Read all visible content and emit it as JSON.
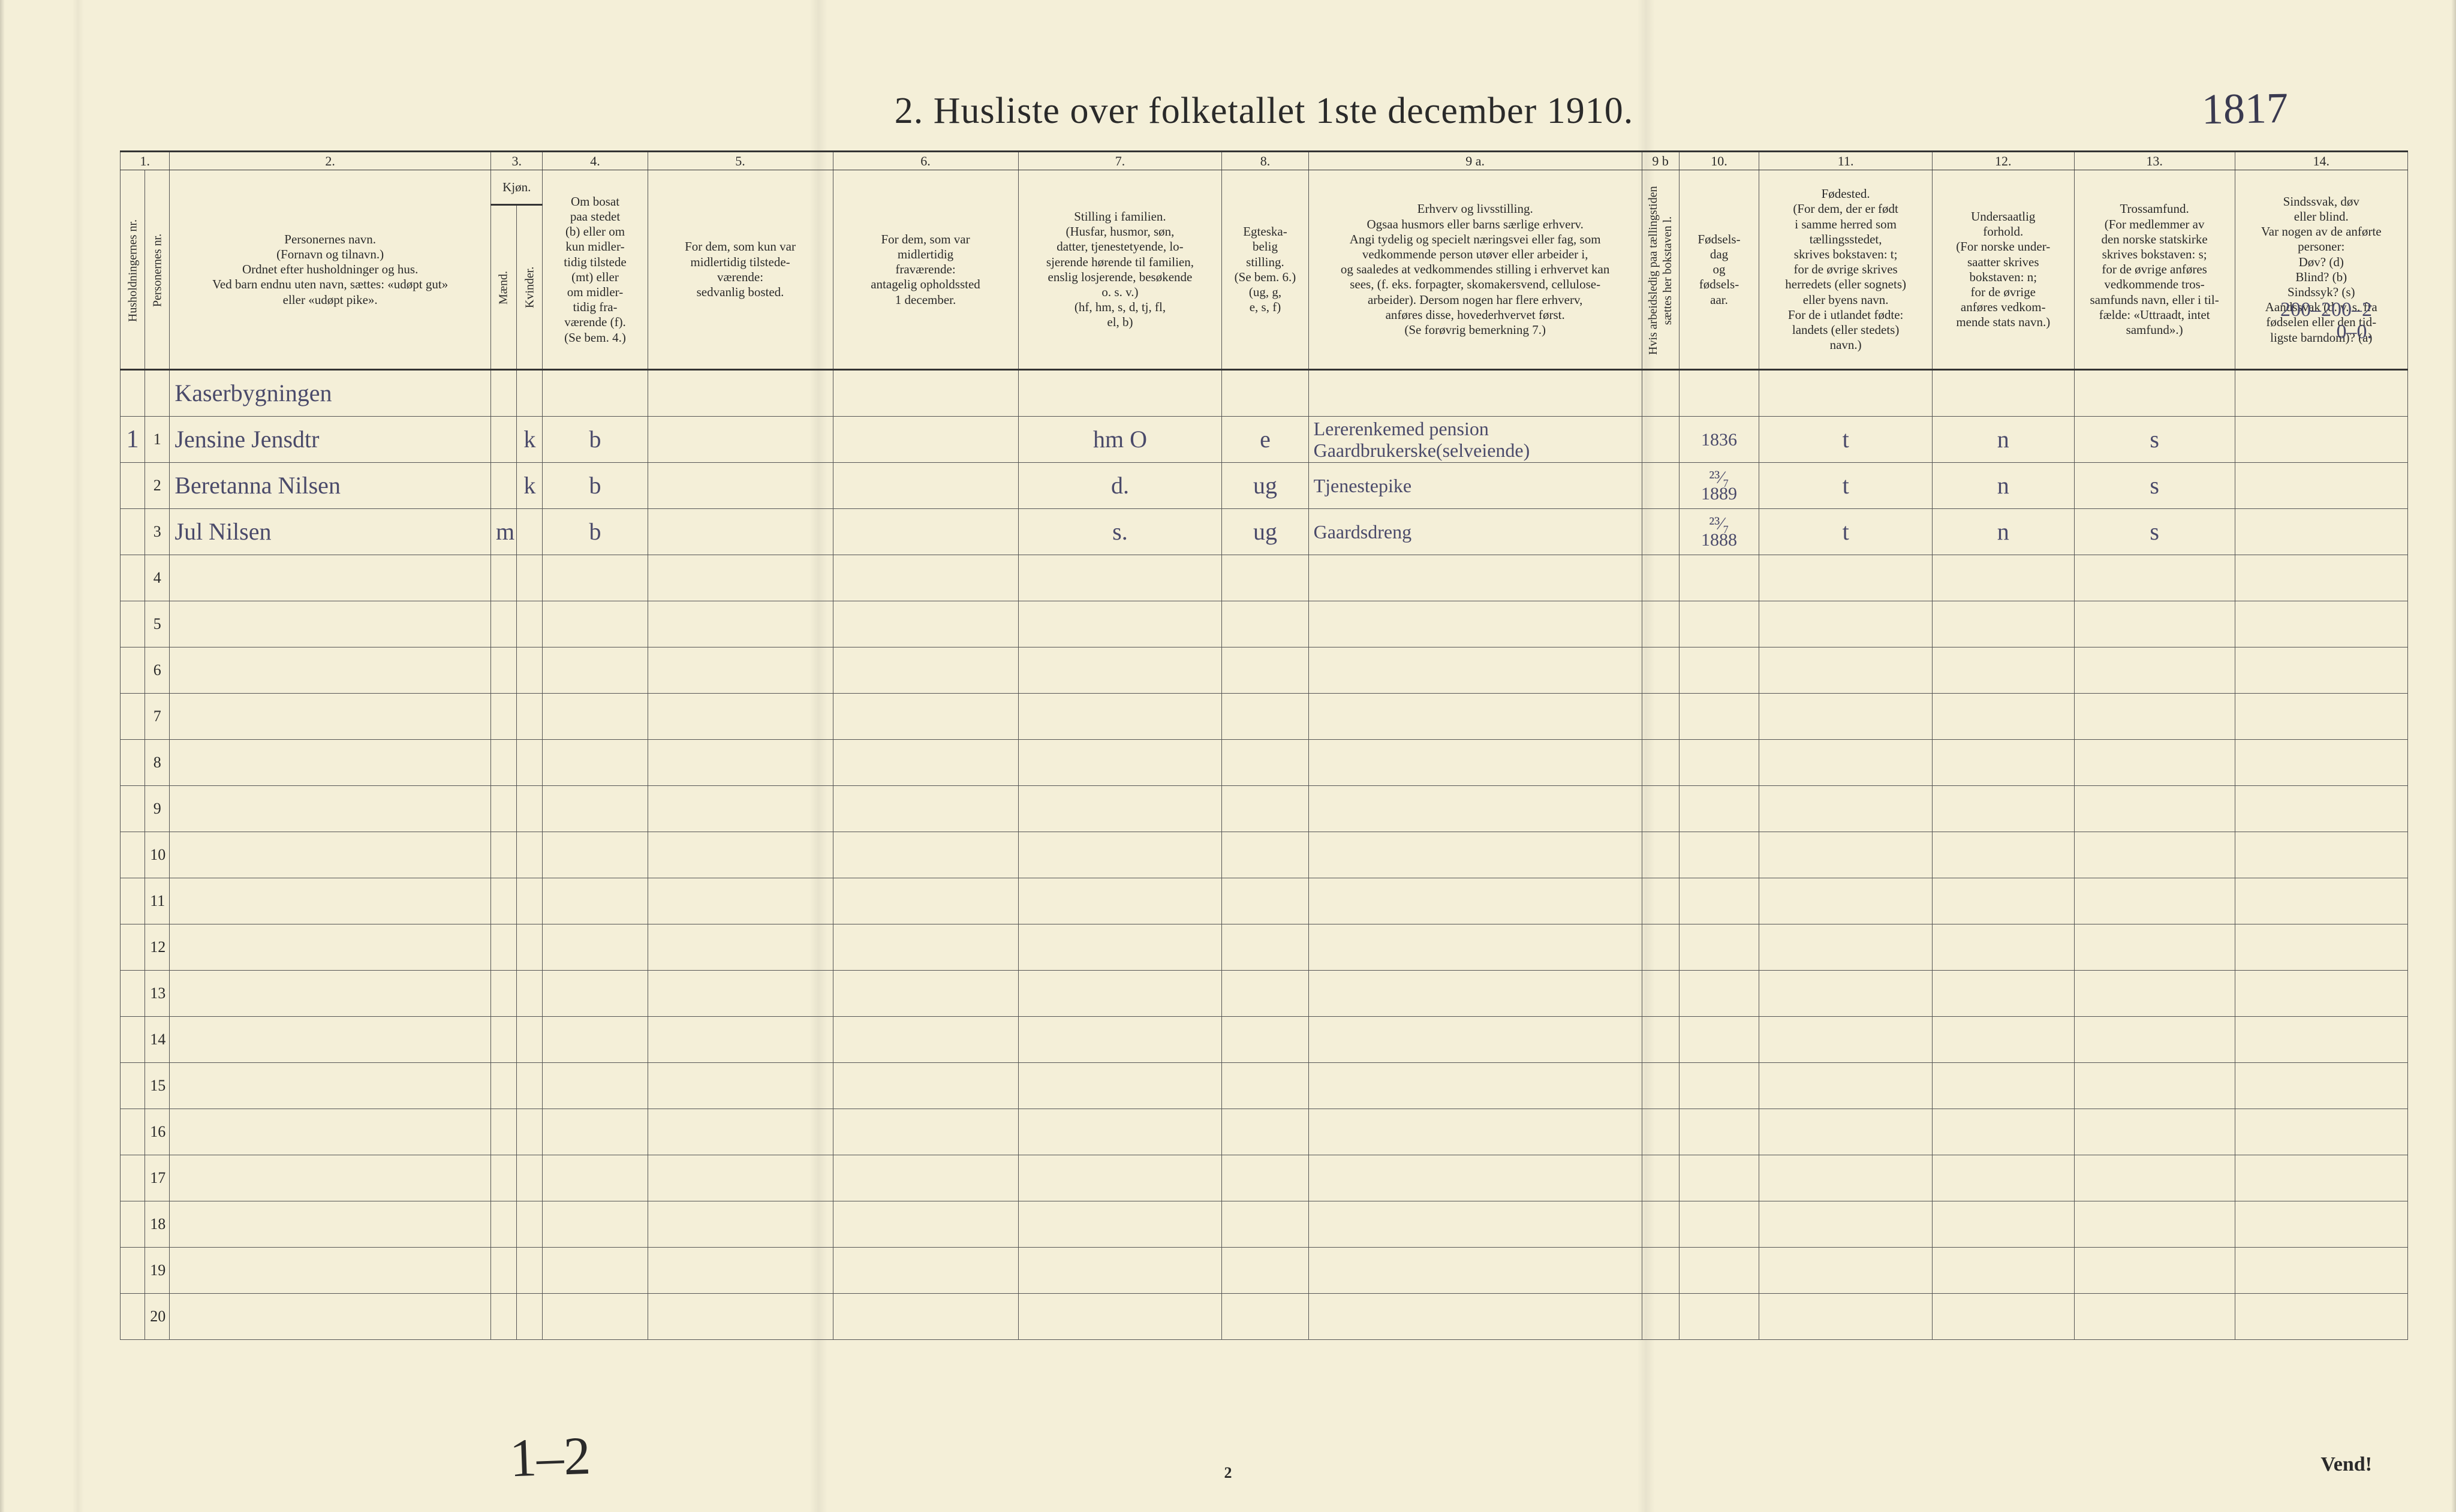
{
  "title": "2.  Husliste over folketallet 1ste december 1910.",
  "topHandwritten": "1817",
  "bottomHandwritten": "1–2",
  "pageNumber": "2",
  "vend": "Vend!",
  "rightMarginHand": "200–200–2\n0–0.",
  "columns": {
    "nums": [
      "1.",
      "",
      "2.",
      "3.",
      "",
      "4.",
      "5.",
      "6.",
      "7.",
      "8.",
      "9 a.",
      "9 b",
      "10.",
      "11.",
      "12.",
      "13.",
      "14."
    ],
    "headers": {
      "c1": "Husholdningernes nr.",
      "c1b": "Personernes nr.",
      "c2": "Personernes navn.\n(Fornavn og tilnavn.)\nOrdnet efter husholdninger og hus.\nVed barn endnu uten navn, sættes: «udøpt gut»\neller «udøpt pike».",
      "c3": "Kjøn.",
      "c3m": "Mænd.",
      "c3k": "Kvinder.",
      "c4": "Om bosat\npaa stedet\n(b) eller om\nkun midler-\ntidig tilstede\n(mt) eller\nom midler-\ntidig fra-\nværende (f).\n(Se bem. 4.)",
      "c5": "For dem, som kun var\nmidlertidig tilstede-\nværende:\nsedvanlig bosted.",
      "c6": "For dem, som var\nmidlertidig\nfraværende:\nantagelig opholdssted\n1 december.",
      "c7": "Stilling i familien.\n(Husfar, husmor, søn,\ndatter, tjenestetyende, lo-\nsjerende hørende til familien,\nenslig losjerende, besøkende\no. s. v.)\n(hf, hm, s, d, tj, fl,\nel, b)",
      "c8": "Egteska-\nbelig\nstilling.\n(Se bem. 6.)\n(ug, g,\ne, s, f)",
      "c9a": "Erhverv og livsstilling.\nOgsaa husmors eller barns særlige erhverv.\nAngi tydelig og specielt næringsvei eller fag, som\nvedkommende person utøver eller arbeider i,\nog saaledes at vedkommendes stilling i erhvervet kan\nsees, (f. eks. forpagter, skomakersvend, cellulose-\narbeider). Dersom nogen har flere erhverv,\nanføres disse, hovederhvervet først.\n(Se forøvrig bemerkning 7.)",
      "c9b": "Hvis arbeidsledig\npaa tællingstiden sættes\nher bokstaven l.",
      "c10": "Fødsels-\ndag\nog\nfødsels-\naar.",
      "c11": "Fødested.\n(For dem, der er født\ni samme herred som\ntællingsstedet,\nskrives bokstaven: t;\nfor de øvrige skrives\nherredets (eller sognets)\neller byens navn.\nFor de i utlandet fødte:\nlandets (eller stedets)\nnavn.)",
      "c12": "Undersaatlig\nforhold.\n(For norske under-\nsaatter skrives\nbokstaven: n;\nfor de øvrige\nanføres vedkom-\nmende stats navn.)",
      "c13": "Trossamfund.\n(For medlemmer av\nden norske statskirke\nskrives bokstaven: s;\nfor de øvrige anføres\nvedkommende tros-\nsamfunds navn, eller i til-\nfælde: «Uttraadt, intet\nsamfund».)",
      "c14": "Sindssvak, døv\neller blind.\nVar nogen av de anførte\npersoner:\nDøv?       (d)\nBlind?     (b)\nSindssyk? (s)\nAandssvak (d. v. s. fra\nfødselen eller den tid-\nligste barndom)? (a)"
    }
  },
  "rows": [
    {
      "hnum": "",
      "pnum": "",
      "name": "Kaserbygningen",
      "m": "",
      "k": "",
      "c4": "",
      "c5": "",
      "c6": "",
      "c7": "",
      "c8": "",
      "c9a": "",
      "c10": "",
      "c11": "",
      "c12": "",
      "c13": ""
    },
    {
      "hnum": "1",
      "pnum": "1",
      "name": "Jensine Jensdtr",
      "m": "",
      "k": "k",
      "c4": "b",
      "c5": "",
      "c6": "",
      "c7": "hm O",
      "c8": "e",
      "c9a": "Lererenkemed pension\nGaardbrukerske(selveiende)",
      "c10": "1836",
      "c11": "t",
      "c12": "n",
      "c13": "s"
    },
    {
      "hnum": "",
      "pnum": "2",
      "name": "Beretanna Nilsen",
      "m": "",
      "k": "k",
      "c4": "b",
      "c5": "",
      "c6": "",
      "c7": "d.",
      "c8": "ug",
      "c9a": "Tjenestepike",
      "c10": "²³⁄₇\n1889",
      "c11": "t",
      "c12": "n",
      "c13": "s"
    },
    {
      "hnum": "",
      "pnum": "3",
      "name": "Jul Nilsen",
      "m": "m",
      "k": "",
      "c4": "b",
      "c5": "",
      "c6": "",
      "c7": "s.",
      "c8": "ug",
      "c9a": "Gaardsdreng",
      "c10": "²³⁄₇\n1888",
      "c11": "t",
      "c12": "n",
      "c13": "s"
    }
  ],
  "emptyRowNums": [
    "4",
    "5",
    "6",
    "7",
    "8",
    "9",
    "10",
    "11",
    "12",
    "13",
    "14",
    "15",
    "16",
    "17",
    "18",
    "19",
    "20"
  ],
  "colors": {
    "paper": "#f4efd8",
    "ink": "#2a2a2a",
    "handwriting": "#4a4a6a",
    "border": "#555"
  }
}
